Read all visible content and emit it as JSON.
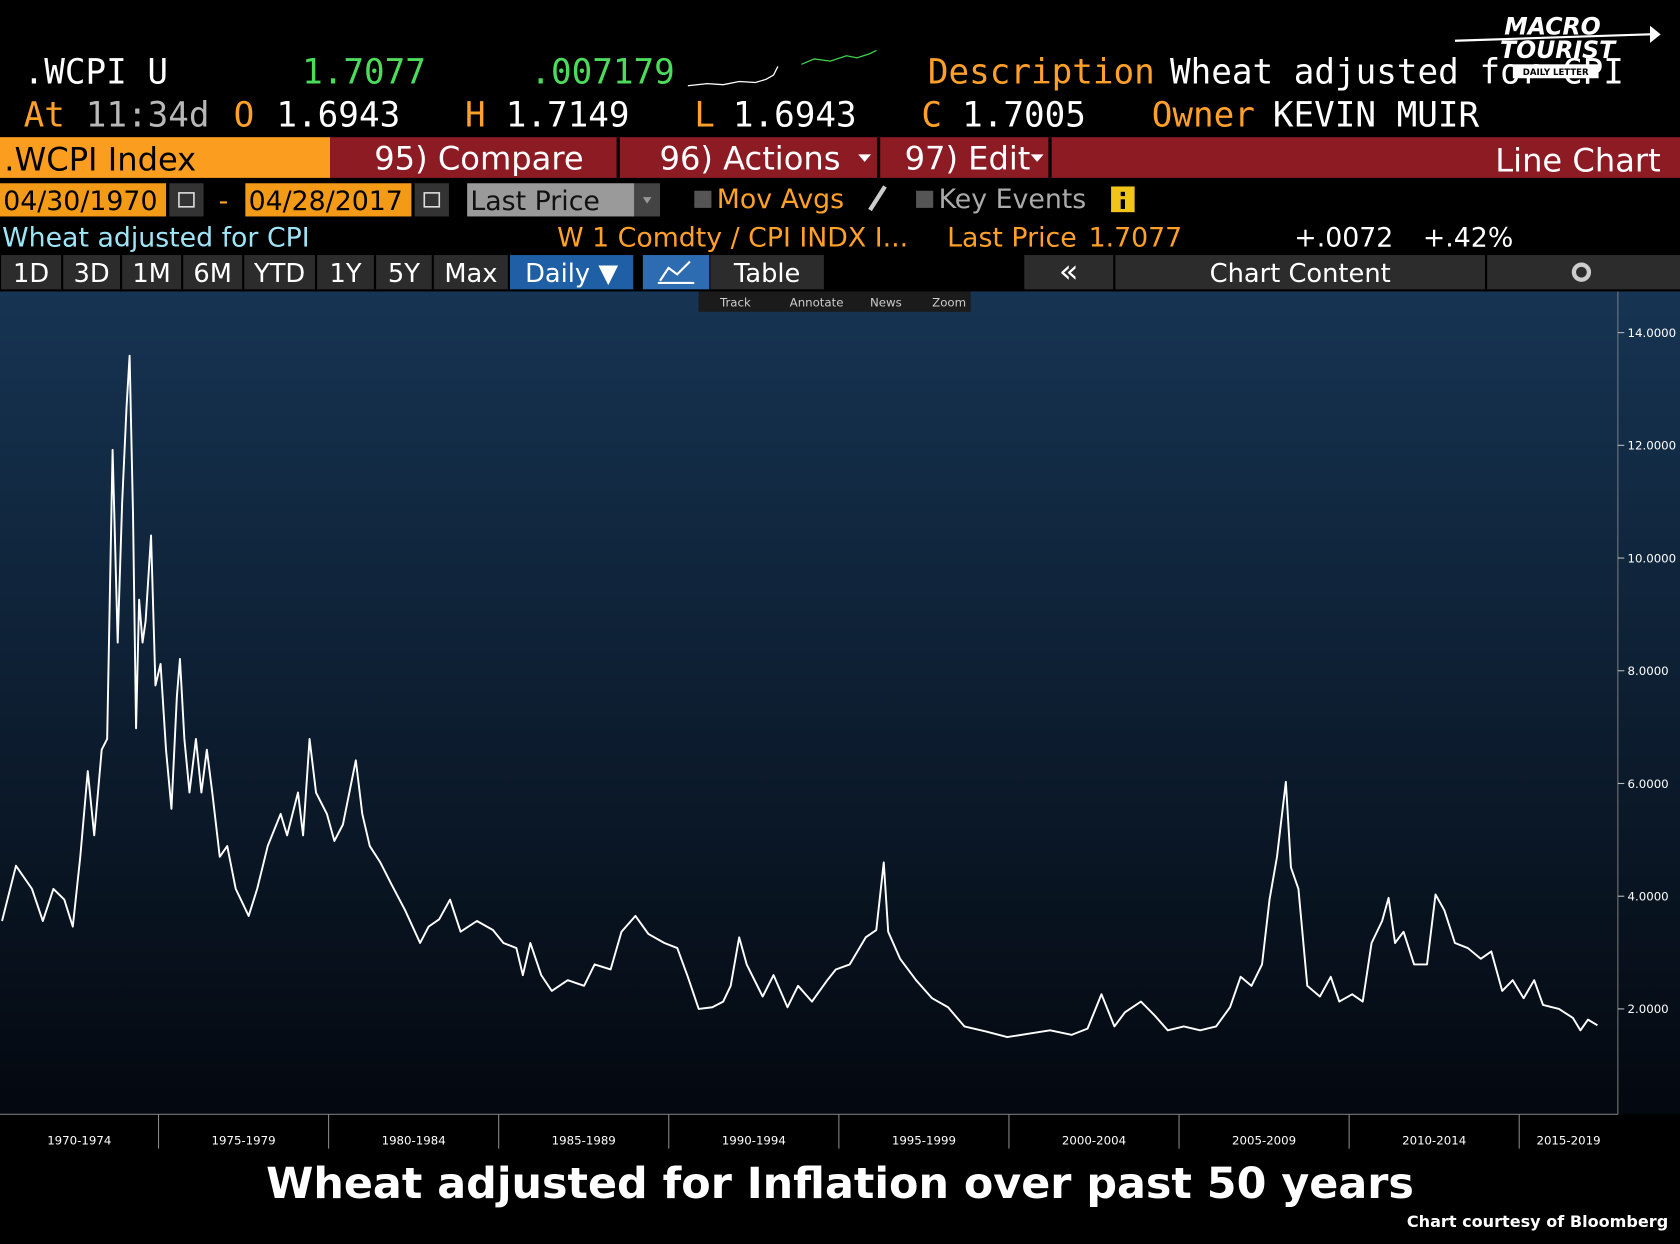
{
  "header": {
    "ticker": ".WCPI U",
    "last": "1.7077",
    "change": ".007179",
    "description_label": "Description",
    "description": "Wheat adjusted for CPI",
    "at_label": "At",
    "time": "11:34d",
    "open_label": "O",
    "open": "1.6943",
    "high_label": "H",
    "high": "1.7149",
    "low_label": "L",
    "low": "1.6943",
    "close_label": "C",
    "close": "1.7005",
    "owner_label": "Owner",
    "owner": "KEVIN MUIR"
  },
  "logo": {
    "line1": "MACRO",
    "line2": "TOURIST",
    "tagline": "DAILY LETTER"
  },
  "menu": {
    "security": ".WCPI Index",
    "items": [
      "95) Compare",
      "96) Actions",
      "97) Edit"
    ],
    "chart_type": "Line Chart"
  },
  "range": {
    "start": "04/30/1970",
    "separator": "-",
    "end": "04/28/2017",
    "field": "Last Price",
    "mov_avgs": "Mov Avgs",
    "key_events": "Key Events"
  },
  "legend": {
    "name": "Wheat adjusted for CPI",
    "formula": "W 1 Comdty / CPI INDX I...",
    "price_label": "Last Price",
    "price": "1.7077",
    "change": "+.0072",
    "pct_change": "+.42%"
  },
  "tabs": [
    "1D",
    "3D",
    "1M",
    "6M",
    "YTD",
    "1Y",
    "5Y",
    "Max",
    "Daily ▼"
  ],
  "view_tabs": [
    "Table",
    "«",
    "Chart Content"
  ],
  "tools": [
    "Track",
    "Annotate",
    "News",
    "Zoom"
  ],
  "chart_data": {
    "type": "line",
    "title": "Wheat adjusted for Inflation over past 50 years",
    "source": "Chart courtesy of Bloomberg",
    "color": "#ffffff",
    "xlim": [
      1970.34,
      2017.9
    ],
    "ylim": [
      0.13,
      14.73
    ],
    "xticks": [
      {
        "value": 1970,
        "label": "1970-1974"
      },
      {
        "value": 1975,
        "label": "1975-1979"
      },
      {
        "value": 1980,
        "label": "1980-1984"
      },
      {
        "value": 1985,
        "label": "1985-1989"
      },
      {
        "value": 1990,
        "label": "1990-1994"
      },
      {
        "value": 1995,
        "label": "1995-1999"
      },
      {
        "value": 2000,
        "label": "2000-2004"
      },
      {
        "value": 2005,
        "label": "2005-2009"
      },
      {
        "value": 2010,
        "label": "2010-2014"
      },
      {
        "value": 2015,
        "label": "2015-2019"
      }
    ],
    "yticks": [
      {
        "value": 2,
        "label": "2.0000"
      },
      {
        "value": 4,
        "label": "4.0000"
      },
      {
        "value": 6,
        "label": "6.0000"
      },
      {
        "value": 8,
        "label": "8.0000"
      },
      {
        "value": 10,
        "label": "10.0000"
      },
      {
        "value": 12,
        "label": "12.0000"
      },
      {
        "value": 14,
        "label": "14.0000"
      }
    ],
    "x": [
      1970.4,
      1970.81,
      1971.28,
      1971.6,
      1971.91,
      1972.23,
      1972.48,
      1972.7,
      1972.92,
      1973.11,
      1973.33,
      1973.49,
      1973.65,
      1973.8,
      1973.93,
      1974.06,
      1974.15,
      1974.25,
      1974.34,
      1974.43,
      1974.53,
      1974.62,
      1974.78,
      1974.91,
      1975.06,
      1975.22,
      1975.38,
      1975.54,
      1975.63,
      1975.76,
      1975.91,
      1976.1,
      1976.26,
      1976.42,
      1976.58,
      1976.8,
      1977.02,
      1977.27,
      1977.65,
      1977.9,
      1978.21,
      1978.59,
      1978.78,
      1979.1,
      1979.25,
      1979.44,
      1979.63,
      1979.95,
      1980.17,
      1980.42,
      1980.8,
      1980.99,
      1981.21,
      1981.52,
      1981.84,
      1982.25,
      1982.69,
      1982.94,
      1983.25,
      1983.57,
      1983.88,
      1984.36,
      1984.83,
      1985.14,
      1985.52,
      1985.71,
      1985.93,
      1986.25,
      1986.56,
      1987.03,
      1987.51,
      1987.82,
      1988.29,
      1988.61,
      1989.02,
      1989.4,
      1989.87,
      1990.25,
      1990.56,
      1990.88,
      1991.28,
      1991.6,
      1991.82,
      1992.07,
      1992.29,
      1992.76,
      1993.08,
      1993.49,
      1993.8,
      1994.21,
      1994.66,
      1994.91,
      1995.32,
      1995.79,
      1996.1,
      1996.32,
      1996.45,
      1996.8,
      1997.27,
      1997.74,
      1998.21,
      1998.69,
      1999.32,
      1999.95,
      2000.58,
      2001.21,
      2001.84,
      2002.31,
      2002.72,
      2003.1,
      2003.41,
      2003.88,
      2004.29,
      2004.67,
      2005.14,
      2005.62,
      2006.09,
      2006.5,
      2006.81,
      2007.13,
      2007.44,
      2007.66,
      2007.88,
      2008.14,
      2008.29,
      2008.51,
      2008.77,
      2009.14,
      2009.46,
      2009.71,
      2010.09,
      2010.4,
      2010.66,
      2010.97,
      2011.16,
      2011.35,
      2011.6,
      2011.91,
      2012.29,
      2012.54,
      2012.8,
      2013.11,
      2013.49,
      2013.87,
      2014.18,
      2014.5,
      2014.81,
      2015.13,
      2015.44,
      2015.7,
      2016.17,
      2016.58,
      2016.8,
      2017.02,
      2017.3
    ],
    "values": [
      3.56,
      4.54,
      4.13,
      3.56,
      4.13,
      3.94,
      3.46,
      4.7,
      6.22,
      5.08,
      6.6,
      6.79,
      11.92,
      8.5,
      10.97,
      12.68,
      13.59,
      10.78,
      6.98,
      9.26,
      8.5,
      8.88,
      10.4,
      7.74,
      8.12,
      6.6,
      5.55,
      7.55,
      8.21,
      6.79,
      5.84,
      6.79,
      5.84,
      6.6,
      5.84,
      4.7,
      4.89,
      4.13,
      3.65,
      4.13,
      4.89,
      5.46,
      5.08,
      5.84,
      5.08,
      6.79,
      5.84,
      5.46,
      4.98,
      5.27,
      6.41,
      5.46,
      4.89,
      4.6,
      4.22,
      3.75,
      3.17,
      3.46,
      3.59,
      3.94,
      3.37,
      3.56,
      3.4,
      3.17,
      3.08,
      2.6,
      3.17,
      2.6,
      2.32,
      2.51,
      2.41,
      2.79,
      2.7,
      3.37,
      3.65,
      3.33,
      3.17,
      3.08,
      2.57,
      2.0,
      2.03,
      2.13,
      2.41,
      3.27,
      2.79,
      2.22,
      2.6,
      2.03,
      2.41,
      2.13,
      2.51,
      2.7,
      2.79,
      3.27,
      3.4,
      4.6,
      3.37,
      2.89,
      2.51,
      2.19,
      2.03,
      1.69,
      1.6,
      1.5,
      1.56,
      1.62,
      1.54,
      1.65,
      2.26,
      1.69,
      1.94,
      2.13,
      1.88,
      1.62,
      1.69,
      1.62,
      1.69,
      2.03,
      2.57,
      2.41,
      2.79,
      3.94,
      4.7,
      6.03,
      4.51,
      4.13,
      2.41,
      2.22,
      2.57,
      2.13,
      2.26,
      2.13,
      3.17,
      3.56,
      3.97,
      3.17,
      3.37,
      2.79,
      2.79,
      4.03,
      3.75,
      3.17,
      3.08,
      2.89,
      3.02,
      2.32,
      2.51,
      2.19,
      2.51,
      2.07,
      2.0,
      1.84,
      1.62,
      1.81,
      1.71
    ]
  }
}
